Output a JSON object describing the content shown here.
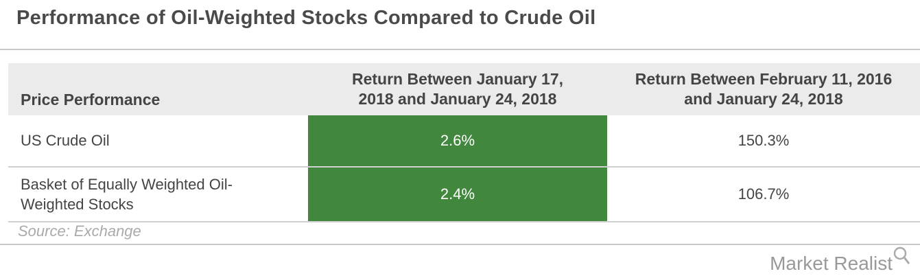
{
  "header": {
    "title": "Performance of Oil-Weighted Stocks Compared to Crude Oil"
  },
  "table": {
    "columns": [
      "Price Performance",
      "Return Between January 17, 2018 and January 24, 2018",
      "Return Between February 11, 2016 and January 24, 2018"
    ],
    "rows": [
      [
        "US Crude Oil",
        "2.6%",
        "150.3%"
      ],
      [
        "Basket of Equally Weighted Oil-Weighted Stocks",
        "2.4%",
        "106.7%"
      ]
    ]
  },
  "source": "Source: Exchange",
  "logo": "Market Realist"
}
